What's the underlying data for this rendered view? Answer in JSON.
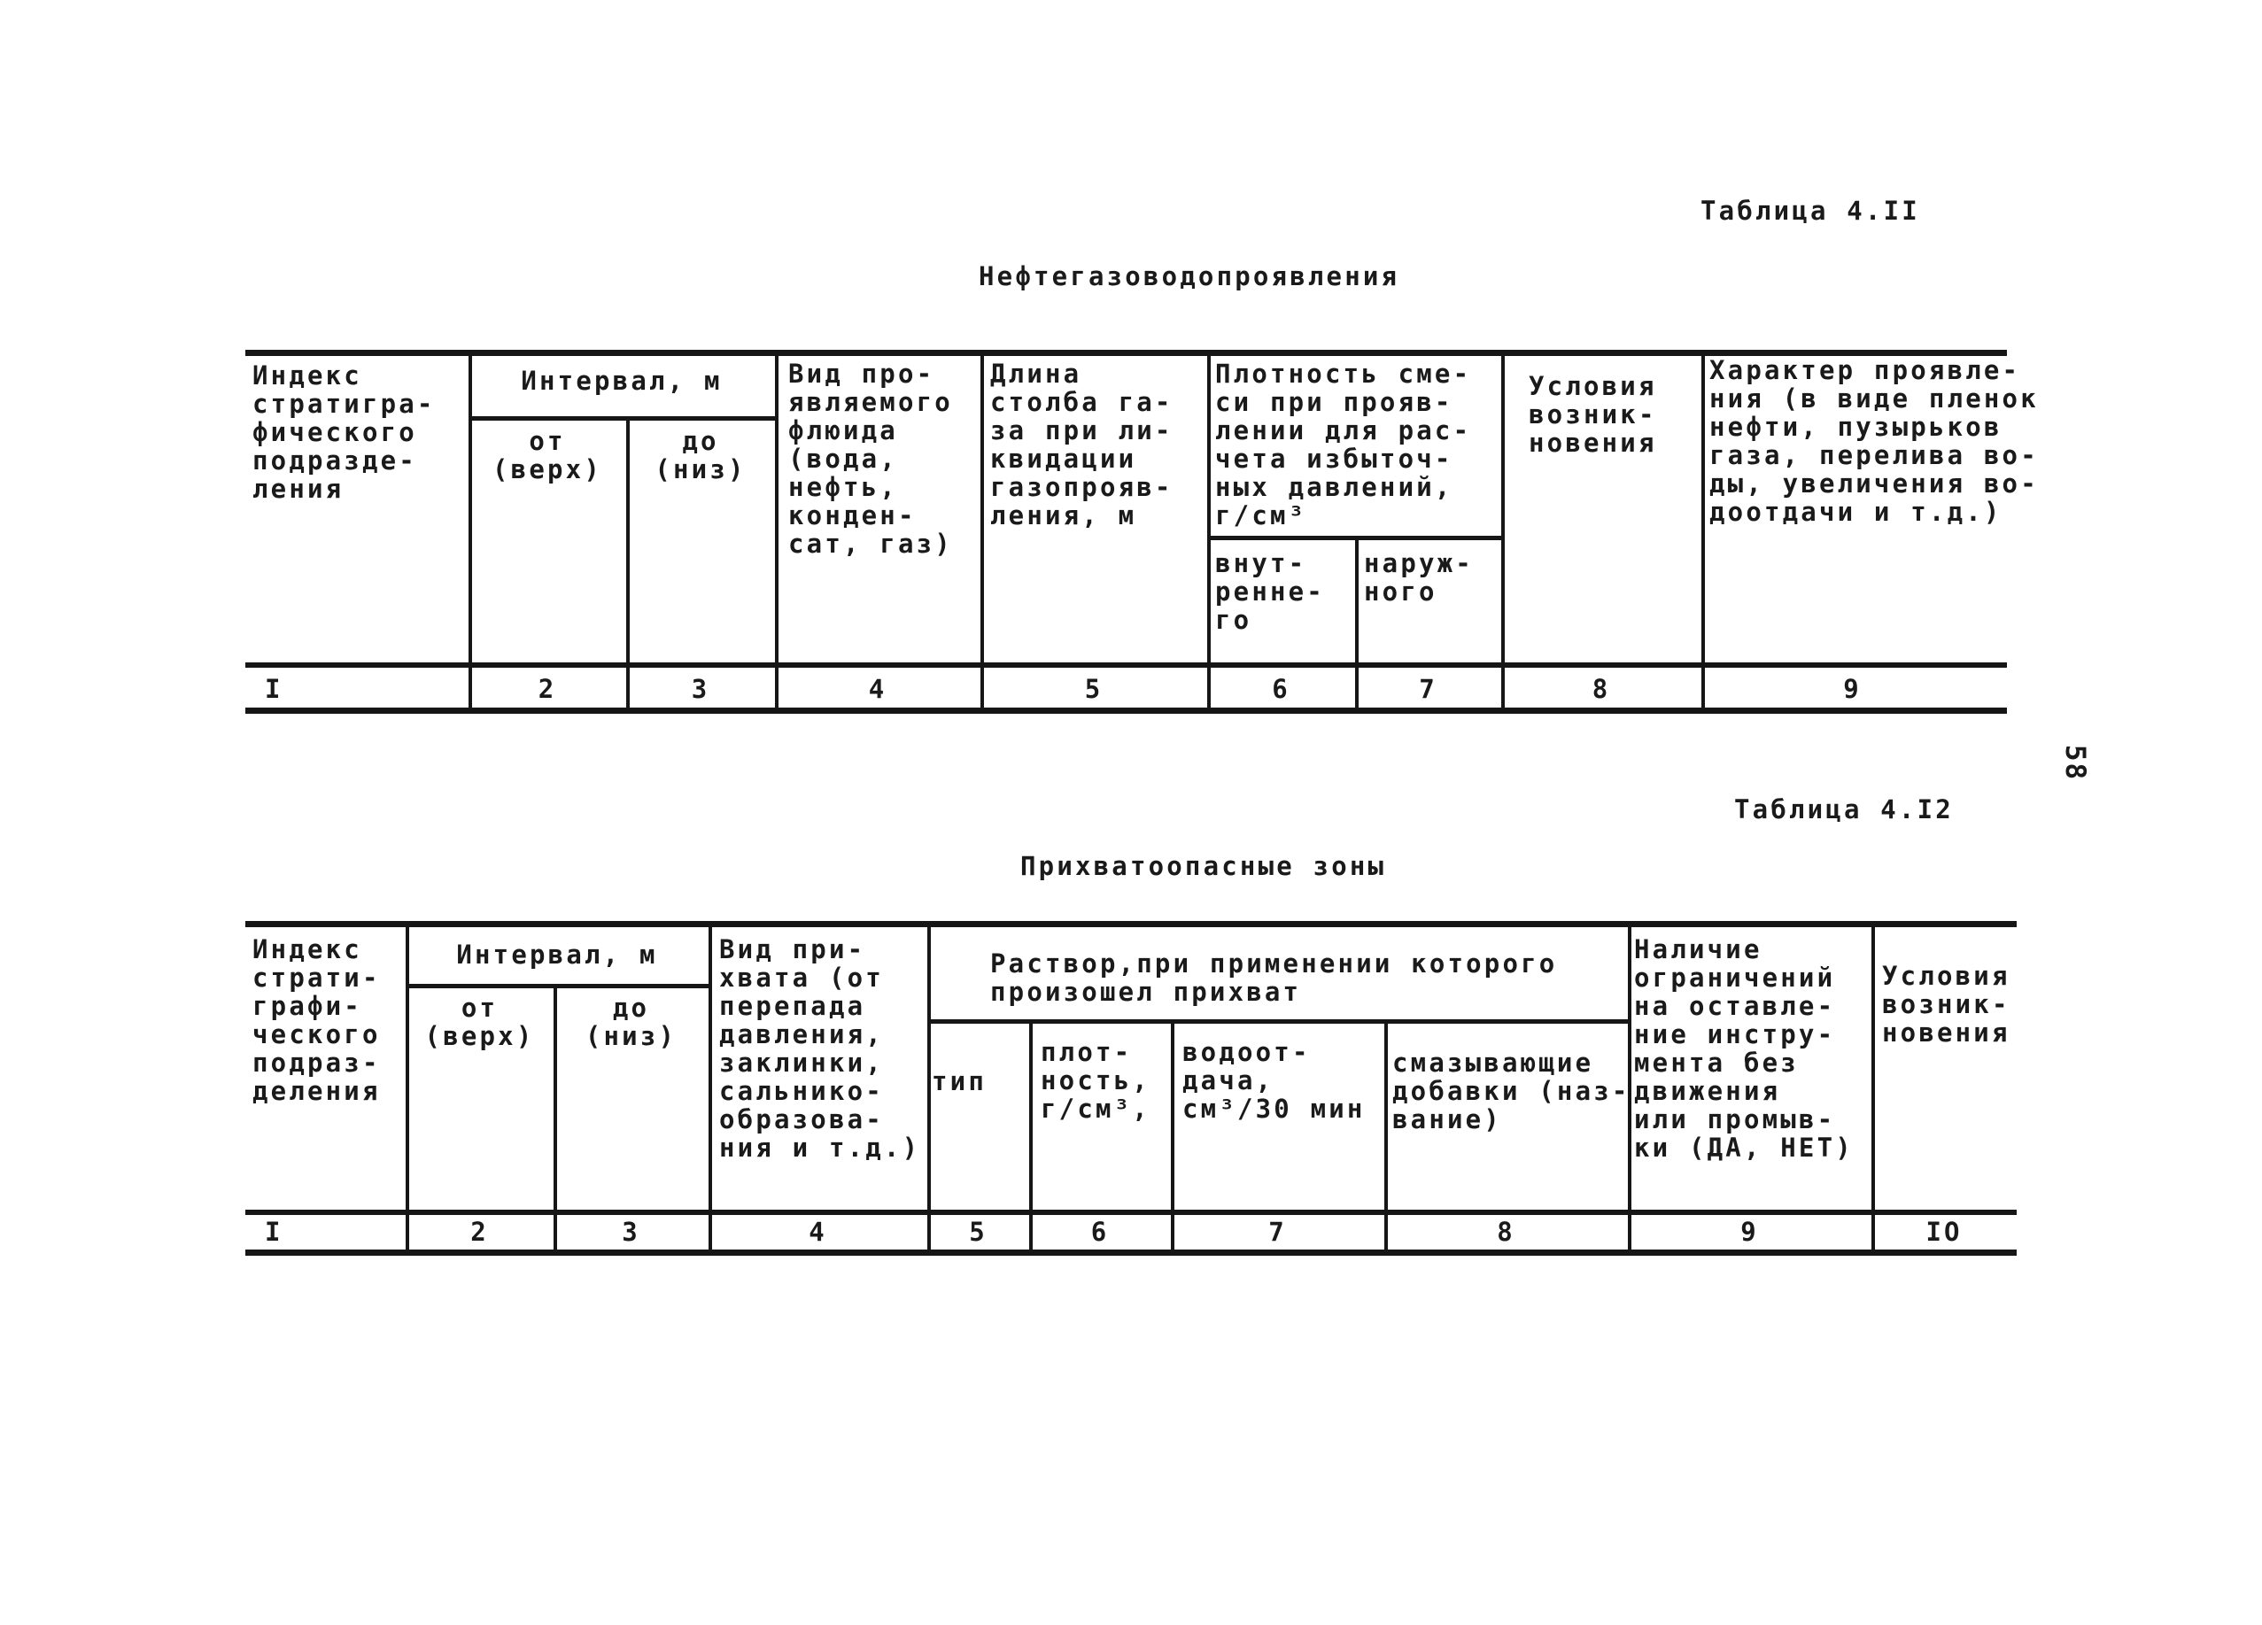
{
  "page": {
    "number_rotated": "58"
  },
  "table1": {
    "caption": "Таблица 4.II",
    "title": "Нефтегазоводопроявления",
    "headers": {
      "col1": "Индекс\nстратигра-\nфического\nподразде-\nления",
      "interval_group": "Интервал, м",
      "interval_from": "от\n(верх)",
      "interval_to": "до\n(низ)",
      "fluid_kind": "Вид про-\nявляемого\nфлюида\n(вода,\nнефть,\nконден-\nсат, газ)",
      "gas_column_length": "Длина\nстолба га-\nза при ли-\nквидации\nгазопрояв-\nления, м",
      "density_group": "Плотность сме-\nси при прояв-\nлении для рас-\nчета избыточ-\nных давлений,\nг/см³",
      "density_inner": "внут-\nренне-\nго",
      "density_outer": "наруж-\nного",
      "conditions": "Условия\nвозник-\nновения",
      "character": "Характер проявле-\nния (в виде пленок\nнефти, пузырьков\nгаза, перелива во-\nды, увеличения во-\nдоотдачи и т.д.)"
    },
    "column_numbers": [
      "I",
      "2",
      "3",
      "4",
      "5",
      "6",
      "7",
      "8",
      "9"
    ]
  },
  "table2": {
    "caption": "Таблица 4.I2",
    "title": "Прихватоопасные зоны",
    "headers": {
      "col1": "Индекс\nстрати-\nграфи-\nческого\nподраз-\nделения",
      "interval_group": "Интервал, м",
      "interval_from": "от\n(верх)",
      "interval_to": "до\n(низ)",
      "sticking_kind": "Вид при-\nхвата (от\nперепада\nдавления,\nзаклинки,\nсальнико-\nобразова-\nния и т.д.)",
      "mud_group": "Раствор,при применении которого\nпроизошел прихват",
      "mud_type": "тип",
      "mud_density": "плот-\nность,\nг/см³,",
      "mud_water_loss": "водоот-\nдача,\nсм³/30 мин",
      "mud_additives": "смазывающие\nдобавки (наз-\nвание)",
      "restrictions": "Наличие\nограничений\nна оставле-\nние инстру-\nмента без\nдвижения\nили промыв-\nки (ДА, НЕТ)",
      "conditions": "Условия\nвозник-\nновения"
    },
    "column_numbers": [
      "I",
      "2",
      "3",
      "4",
      "5",
      "6",
      "7",
      "8",
      "9",
      "IО"
    ]
  }
}
